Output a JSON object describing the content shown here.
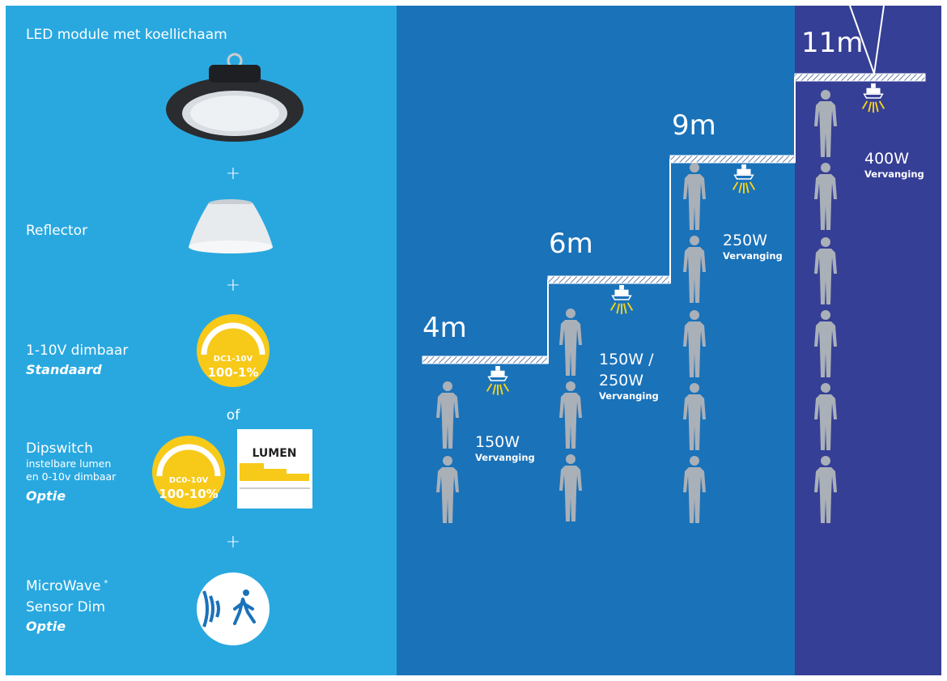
{
  "left": {
    "header": "LED module met koellichaam",
    "plus": "+",
    "reflector": "Reflector",
    "dim_standard": {
      "label": "1-10V dimbaar",
      "note": "Standaard",
      "badge_top": "DC1-10V",
      "badge_bottom": "100-1%"
    },
    "or": "of",
    "dipswitch": {
      "label": "Dipswitch",
      "lines": [
        "instelbare lumen",
        "en 0-10v dimbaar"
      ],
      "note": "Optie",
      "badge_top": "DC0-10V",
      "badge_bottom": "100-10%",
      "lumen": "LUMEN"
    },
    "sensor": {
      "label": "MicroWave",
      "mark": "*",
      "line": "Sensor Dim",
      "note": "Optie"
    }
  },
  "levels": [
    {
      "height": "4m",
      "wattage": [
        "150W"
      ],
      "note": "Vervanging"
    },
    {
      "height": "6m",
      "wattage": [
        "150W /",
        "250W"
      ],
      "note": "Vervanging"
    },
    {
      "height": "9m",
      "wattage": [
        "250W"
      ],
      "note": "Vervanging"
    },
    {
      "height": "11m",
      "wattage": [
        "400W"
      ],
      "note": "Vervanging"
    }
  ]
}
